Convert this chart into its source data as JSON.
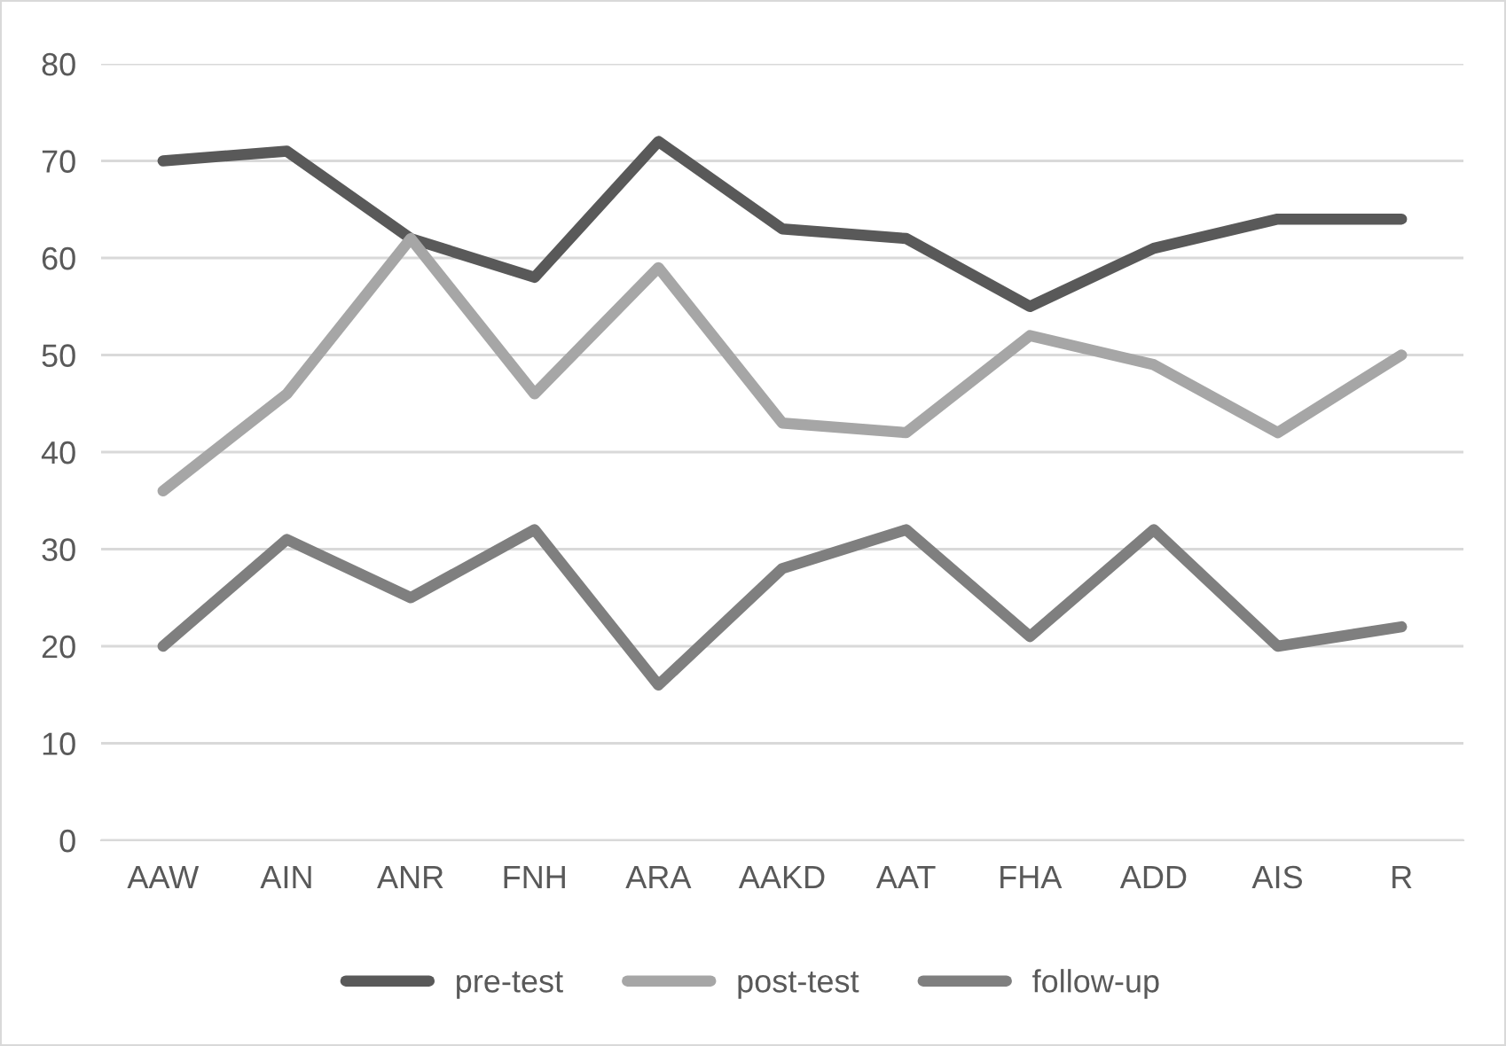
{
  "chart_data": {
    "type": "line",
    "categories": [
      "AAW",
      "AIN",
      "ANR",
      "FNH",
      "ARA",
      "AAKD",
      "AAT",
      "FHA",
      "ADD",
      "AIS",
      "R"
    ],
    "series": [
      {
        "name": "pre-test",
        "color": "#595959",
        "values": [
          70,
          71,
          62,
          58,
          72,
          63,
          62,
          55,
          61,
          64,
          64
        ]
      },
      {
        "name": "post-test",
        "color": "#a6a6a6",
        "values": [
          36,
          46,
          62,
          46,
          59,
          43,
          42,
          52,
          49,
          42,
          50
        ]
      },
      {
        "name": "follow-up",
        "color": "#7f7f7f",
        "values": [
          20,
          31,
          25,
          32,
          16,
          28,
          32,
          21,
          32,
          20,
          22
        ]
      }
    ],
    "ylim": [
      0,
      80
    ],
    "yticks": [
      0,
      10,
      20,
      30,
      40,
      50,
      60,
      70,
      80
    ],
    "grid": "y",
    "legend": "bottom",
    "marker": "none",
    "line_style": "solid"
  }
}
